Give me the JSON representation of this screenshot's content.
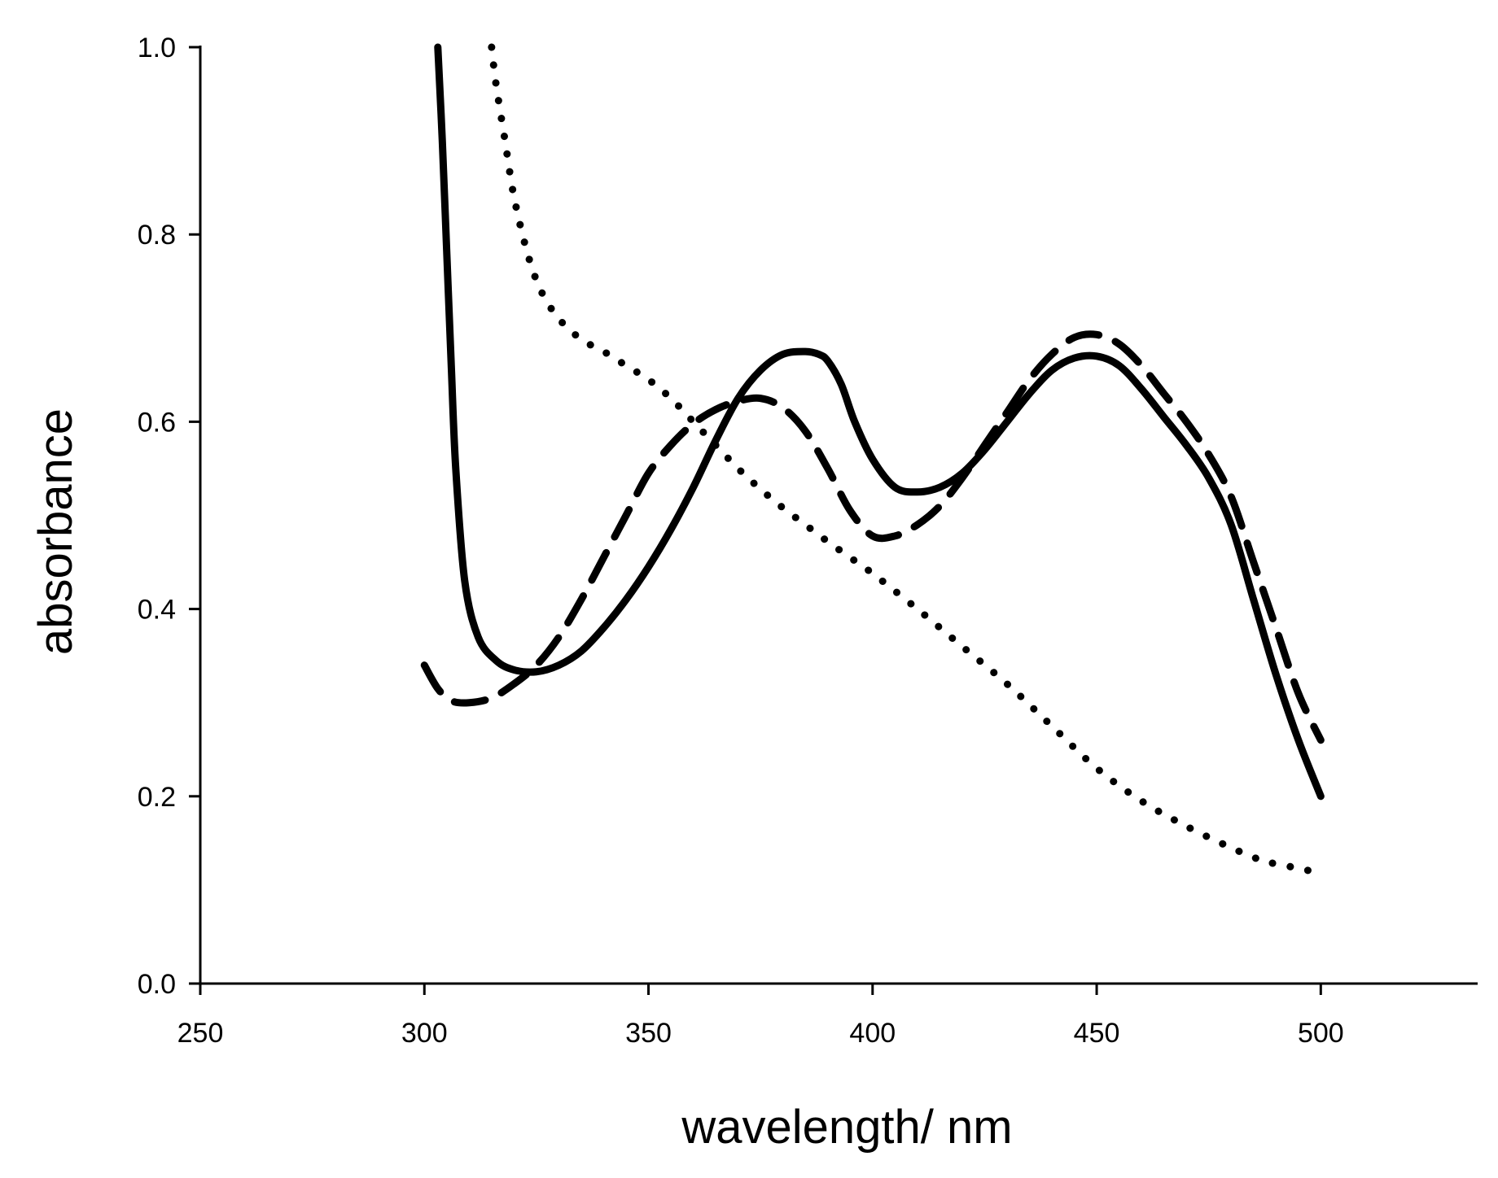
{
  "chart_data": {
    "type": "line",
    "title": "",
    "xlabel": "wavelength/ nm",
    "ylabel": "absorbance",
    "xlim": [
      250,
      535
    ],
    "ylim": [
      0.0,
      1.0
    ],
    "xticks": [
      250,
      300,
      350,
      400,
      450,
      500
    ],
    "yticks": [
      0.0,
      0.2,
      0.4,
      0.6,
      0.8,
      1.0
    ],
    "xtick_labels": [
      "250",
      "300",
      "350",
      "400",
      "450",
      "500"
    ],
    "ytick_labels": [
      "0.0",
      "0.2",
      "0.4",
      "0.6",
      "0.8",
      "1.0"
    ],
    "grid": false,
    "legend": "none",
    "series": [
      {
        "name": "solid",
        "style": "solid",
        "color": "#000000",
        "x": [
          303,
          304,
          305,
          306,
          307,
          309,
          312,
          316,
          320,
          325,
          330,
          335,
          340,
          345,
          350,
          355,
          360,
          365,
          370,
          375,
          380,
          385,
          388,
          390,
          393,
          396,
          400,
          405,
          410,
          415,
          420,
          425,
          430,
          435,
          440,
          445,
          450,
          455,
          460,
          465,
          470,
          475,
          480,
          485,
          490,
          495,
          500
        ],
        "y": [
          1.0,
          0.9,
          0.78,
          0.66,
          0.55,
          0.43,
          0.37,
          0.345,
          0.335,
          0.333,
          0.34,
          0.355,
          0.38,
          0.41,
          0.445,
          0.485,
          0.53,
          0.58,
          0.625,
          0.655,
          0.672,
          0.675,
          0.672,
          0.665,
          0.64,
          0.6,
          0.56,
          0.53,
          0.525,
          0.53,
          0.545,
          0.57,
          0.6,
          0.63,
          0.655,
          0.668,
          0.67,
          0.66,
          0.635,
          0.605,
          0.575,
          0.54,
          0.49,
          0.41,
          0.33,
          0.26,
          0.2
        ]
      },
      {
        "name": "dashed",
        "style": "dashed",
        "color": "#000000",
        "x": [
          300,
          303,
          306,
          310,
          315,
          320,
          325,
          330,
          335,
          340,
          345,
          350,
          355,
          360,
          365,
          370,
          375,
          380,
          385,
          390,
          395,
          400,
          405,
          410,
          415,
          420,
          425,
          430,
          435,
          440,
          445,
          450,
          455,
          460,
          465,
          470,
          475,
          480,
          485,
          490,
          495,
          500
        ],
        "y": [
          0.34,
          0.315,
          0.302,
          0.3,
          0.305,
          0.32,
          0.34,
          0.37,
          0.41,
          0.455,
          0.5,
          0.545,
          0.575,
          0.598,
          0.613,
          0.622,
          0.625,
          0.615,
          0.59,
          0.55,
          0.505,
          0.478,
          0.478,
          0.49,
          0.51,
          0.54,
          0.575,
          0.61,
          0.645,
          0.672,
          0.69,
          0.693,
          0.683,
          0.66,
          0.63,
          0.6,
          0.565,
          0.52,
          0.45,
          0.38,
          0.31,
          0.26
        ]
      },
      {
        "name": "dotted",
        "style": "dotted",
        "color": "#000000",
        "x": [
          315,
          316,
          318,
          320,
          323,
          326,
          330,
          335,
          340,
          345,
          350,
          355,
          360,
          365,
          370,
          375,
          380,
          385,
          390,
          395,
          400,
          410,
          420,
          430,
          440,
          450,
          460,
          470,
          480,
          485,
          487,
          490,
          495,
          500
        ],
        "y": [
          1.0,
          0.96,
          0.9,
          0.84,
          0.78,
          0.74,
          0.71,
          0.688,
          0.675,
          0.66,
          0.645,
          0.625,
          0.6,
          0.575,
          0.55,
          0.528,
          0.508,
          0.49,
          0.472,
          0.455,
          0.438,
          0.4,
          0.36,
          0.32,
          0.275,
          0.23,
          0.195,
          0.168,
          0.145,
          0.135,
          0.13,
          0.128,
          0.123,
          0.118
        ]
      }
    ]
  }
}
